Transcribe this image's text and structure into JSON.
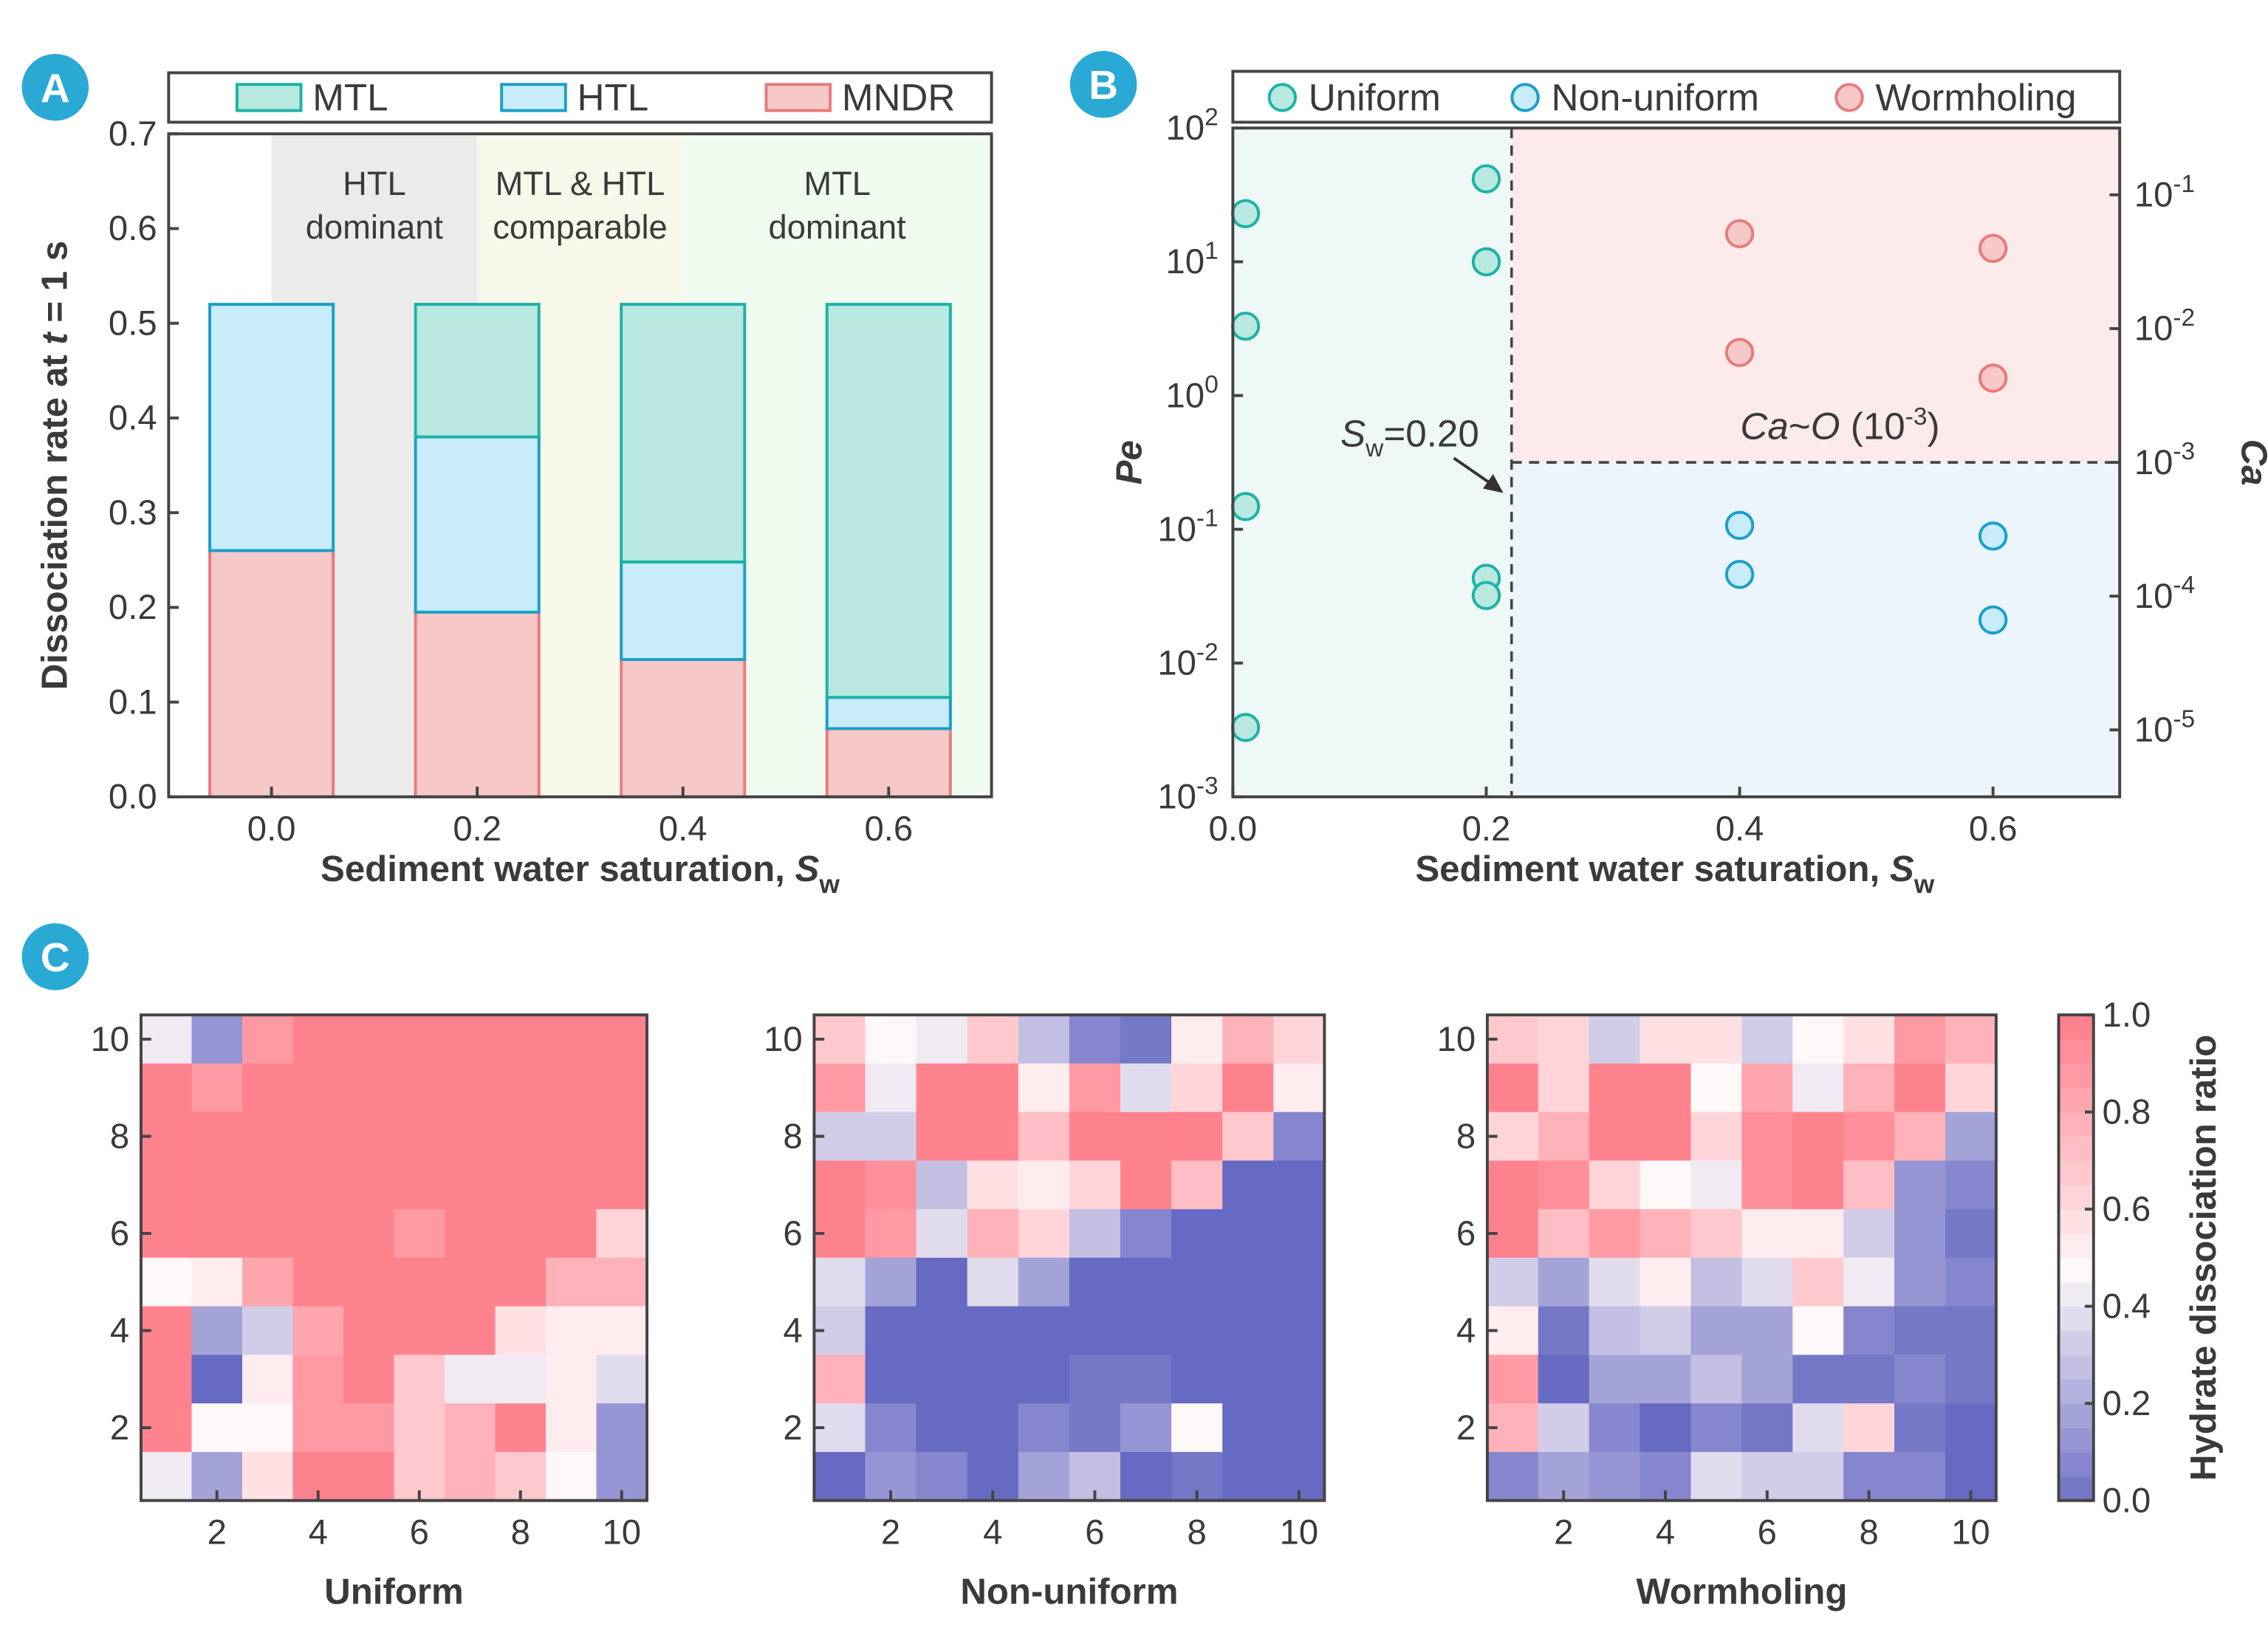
{
  "colors": {
    "badge": "#29a9d4",
    "mtl_fill": "#b8e8df",
    "mtl_stroke": "#1bb3a6",
    "htl_fill": "#c8ecfa",
    "htl_stroke": "#1a9fc9",
    "mndr_fill": "#f6c8c8",
    "mndr_stroke": "#e87b7b",
    "cmap_low": "#666ac2",
    "cmap_mid": "#fff8f8",
    "cmap_high": "#ff838f"
  },
  "chart_data": [
    {
      "panel": "A",
      "type": "bar",
      "stacked": true,
      "categories": [
        "0.0",
        "0.2",
        "0.4",
        "0.6"
      ],
      "x": [
        0.0,
        0.2,
        0.4,
        0.6
      ],
      "series": [
        {
          "name": "MNDR",
          "values": [
            0.26,
            0.195,
            0.145,
            0.072
          ]
        },
        {
          "name": "HTL",
          "values": [
            0.26,
            0.185,
            0.103,
            0.033
          ]
        },
        {
          "name": "MTL",
          "values": [
            0.0,
            0.14,
            0.272,
            0.415
          ]
        }
      ],
      "legend": [
        "MTL",
        "HTL",
        "MNDR"
      ],
      "legend_placement": "top",
      "regions": [
        {
          "lines": [
            "HTL",
            "dominant"
          ],
          "x": [
            0.0,
            0.2
          ]
        },
        {
          "lines": [
            "MTL & HTL",
            "comparable"
          ],
          "x": [
            0.2,
            0.4
          ]
        },
        {
          "lines": [
            "MTL",
            "dominant"
          ],
          "x": [
            0.4,
            0.7
          ]
        }
      ],
      "xlabel": {
        "text": "Sediment water saturation, ",
        "sym": "S",
        "sub": "w"
      },
      "ylabel": {
        "pre": "Dissociation rate at ",
        "sym": "t",
        "post": " = 1 s"
      },
      "xlim": [
        -0.1,
        0.7
      ],
      "ylim": [
        0,
        0.7
      ],
      "yticks": [
        "0.0",
        "0.1",
        "0.2",
        "0.3",
        "0.4",
        "0.5",
        "0.6",
        "0.7"
      ]
    },
    {
      "panel": "B",
      "type": "scatter",
      "yscale": "log",
      "series": [
        {
          "name": "Uniform",
          "x": [
            0.01,
            0.01,
            0.01,
            0.01,
            0.2,
            0.2,
            0.2,
            0.2
          ],
          "y": [
            22.9,
            3.3,
            0.148,
            0.0033,
            41.7,
            10.0,
            0.043,
            0.032
          ]
        },
        {
          "name": "Non-uniform",
          "x": [
            0.4,
            0.4,
            0.6,
            0.6
          ],
          "y": [
            0.107,
            0.046,
            0.089,
            0.021
          ]
        },
        {
          "name": "Wormholing",
          "x": [
            0.4,
            0.4,
            0.6,
            0.6
          ],
          "y": [
            16.2,
            2.1,
            12.6,
            1.35
          ]
        }
      ],
      "legend_placement": "top",
      "xlim": [
        0,
        0.7
      ],
      "xticks": [
        "0.0",
        "0.2",
        "0.4",
        "0.6"
      ],
      "ylim": [
        0.001,
        100
      ],
      "yticks": [
        {
          "base": "10",
          "exp": "-3"
        },
        {
          "base": "10",
          "exp": "-2"
        },
        {
          "base": "10",
          "exp": "-1"
        },
        {
          "base": "10",
          "exp": "0"
        },
        {
          "base": "10",
          "exp": "1"
        },
        {
          "base": "10",
          "exp": "2"
        }
      ],
      "ylabel": "Pe",
      "y2label": "Ca",
      "y2ticks": [
        {
          "base": "10",
          "exp": "-5",
          "ca": 1e-05
        },
        {
          "base": "10",
          "exp": "-4",
          "ca": 0.0001
        },
        {
          "base": "10",
          "exp": "-3",
          "ca": 0.001
        },
        {
          "base": "10",
          "exp": "-2",
          "ca": 0.01
        },
        {
          "base": "10",
          "exp": "-1",
          "ca": 0.1
        }
      ],
      "ca_per_pe": 0.00316,
      "xlabel": {
        "text": "Sediment water saturation, ",
        "sym": "S",
        "sub": "w"
      },
      "vline_x": 0.22,
      "hline_ca": 0.001,
      "annotations": {
        "sw": {
          "sym": "S",
          "sub": "w",
          "val": "=0.20"
        },
        "ca": {
          "a": "Ca",
          "b": "~",
          "c": "O",
          "d": " (10",
          "exp": "-3",
          "e": ")"
        }
      }
    },
    {
      "panel": "C",
      "type": "heatmap",
      "colorbar": {
        "label": "Hydrate dissociation ratio",
        "ticks": [
          "0.0",
          "0.2",
          "0.4",
          "0.6",
          "0.8",
          "1.0"
        ],
        "range": [
          0,
          1
        ]
      },
      "xticks": [
        "2",
        "4",
        "6",
        "8",
        "10"
      ],
      "yticks": [
        "2",
        "4",
        "6",
        "8",
        "10"
      ],
      "maps": [
        {
          "title": "Uniform",
          "rows_top_to_bottom": [
            [
              0.45,
              0.15,
              0.92,
              1,
              1,
              1,
              1,
              1,
              1,
              1
            ],
            [
              1,
              0.9,
              1,
              1,
              1,
              1,
              1,
              1,
              1,
              1
            ],
            [
              1,
              1,
              1,
              1,
              1,
              1,
              1,
              1,
              1,
              1
            ],
            [
              1,
              1,
              1,
              1,
              1,
              1,
              1,
              1,
              1,
              1
            ],
            [
              1,
              1,
              1,
              1,
              1,
              0.92,
              1,
              1,
              1,
              0.65
            ],
            [
              0.52,
              0.57,
              0.85,
              1,
              1,
              1,
              1,
              1,
              0.78,
              0.78
            ],
            [
              1,
              0.2,
              0.33,
              0.85,
              1,
              1,
              1,
              0.62,
              0.55,
              0.57
            ],
            [
              1,
              0.0,
              0.55,
              0.9,
              1,
              0.72,
              0.45,
              0.45,
              0.57,
              0.42
            ],
            [
              1,
              0.52,
              0.52,
              0.92,
              0.92,
              0.72,
              0.8,
              1,
              0.57,
              0.15
            ],
            [
              0.45,
              0.22,
              0.58,
              1,
              1,
              0.72,
              0.8,
              0.68,
              0.52,
              0.15
            ]
          ]
        },
        {
          "title": "Non-uniform",
          "rows_top_to_bottom": [
            [
              0.68,
              0.52,
              0.45,
              0.68,
              0.3,
              0.1,
              0.05,
              0.54,
              0.8,
              0.63
            ],
            [
              0.9,
              0.45,
              1,
              1,
              0.54,
              0.88,
              0.4,
              0.67,
              1,
              0.57
            ],
            [
              0.33,
              0.33,
              1,
              1,
              0.75,
              1,
              1,
              1,
              0.72,
              0.1
            ],
            [
              1,
              0.95,
              0.3,
              0.62,
              0.54,
              0.67,
              1,
              0.75,
              0,
              0
            ],
            [
              1,
              0.88,
              0.4,
              0.78,
              0.67,
              0.28,
              0.1,
              0,
              0,
              0
            ],
            [
              0.4,
              0.22,
              0,
              0.42,
              0.22,
              0,
              0,
              0,
              0,
              0
            ],
            [
              0.33,
              0,
              0,
              0,
              0,
              0,
              0,
              0,
              0,
              0
            ],
            [
              0.8,
              0,
              0,
              0,
              0,
              0.05,
              0.05,
              0,
              0,
              0
            ],
            [
              0.4,
              0.12,
              0,
              0,
              0.1,
              0.05,
              0.15,
              0.52,
              0,
              0
            ],
            [
              0,
              0.15,
              0.12,
              0,
              0.22,
              0.3,
              0,
              0.05,
              0,
              0
            ]
          ]
        },
        {
          "title": "Wormholing",
          "rows_top_to_bottom": [
            [
              0.68,
              0.63,
              0.35,
              0.58,
              0.6,
              0.35,
              0.52,
              0.58,
              0.92,
              0.8
            ],
            [
              1,
              0.63,
              1,
              1,
              0.52,
              0.85,
              0.45,
              0.78,
              1,
              0.63
            ],
            [
              0.67,
              0.8,
              1,
              1,
              0.67,
              0.95,
              1,
              0.95,
              0.8,
              0.22
            ],
            [
              1,
              0.95,
              0.67,
              0.52,
              0.45,
              0.95,
              1,
              0.75,
              0.15,
              0.12
            ],
            [
              1,
              0.75,
              0.9,
              0.8,
              0.72,
              0.54,
              0.57,
              0.35,
              0.15,
              0.05
            ],
            [
              0.33,
              0.22,
              0.42,
              0.55,
              0.3,
              0.42,
              0.72,
              0.45,
              0.15,
              0.1
            ],
            [
              0.57,
              0.05,
              0.3,
              0.35,
              0.18,
              0.18,
              0.52,
              0.12,
              0.05,
              0.05
            ],
            [
              0.88,
              0,
              0.18,
              0.22,
              0.28,
              0.18,
              0.05,
              0.05,
              0.12,
              0.05
            ],
            [
              0.8,
              0.35,
              0.12,
              0,
              0.1,
              0.05,
              0.42,
              0.65,
              0.05,
              0
            ],
            [
              0.1,
              0.18,
              0.15,
              0.12,
              0.42,
              0.35,
              0.35,
              0.12,
              0.1,
              0
            ]
          ]
        }
      ]
    }
  ],
  "badges": [
    "A",
    "B",
    "C"
  ]
}
